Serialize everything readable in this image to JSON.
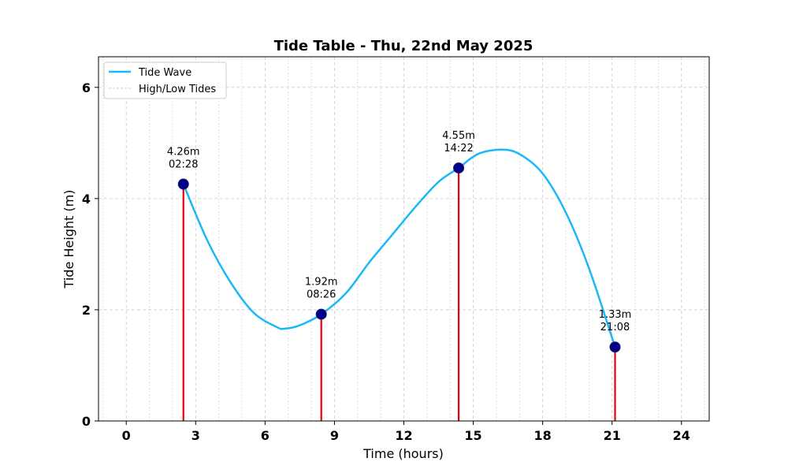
{
  "chart_data": {
    "type": "line",
    "title": "Tide Table - Thu, 22nd May 2025",
    "xlabel": "Time (hours)",
    "ylabel": "Tide Height (m)",
    "xlim": [
      -1.2,
      25.2
    ],
    "ylim": [
      0,
      6.55
    ],
    "xticks": [
      0,
      3,
      6,
      9,
      12,
      15,
      18,
      21,
      24
    ],
    "yticks": [
      0,
      2,
      4,
      6
    ],
    "minor_x_step": 1,
    "grid": true,
    "legend_position": "top-left",
    "series": [
      {
        "name": "Tide Wave",
        "color": "#1ab8f5",
        "x": [
          2.47,
          3.5,
          4.5,
          5.5,
          6.5,
          6.85,
          7.5,
          8.43,
          9.5,
          10.5,
          11.5,
          12.5,
          13.5,
          14.37,
          15.2,
          16.2,
          17.0,
          18.0,
          19.0,
          20.0,
          21.13
        ],
        "y": [
          4.26,
          3.25,
          2.5,
          1.95,
          1.69,
          1.66,
          1.72,
          1.92,
          2.3,
          2.85,
          3.35,
          3.85,
          4.3,
          4.55,
          4.8,
          4.88,
          4.8,
          4.45,
          3.75,
          2.75,
          1.33
        ]
      }
    ],
    "tides_series_name": "High/Low Tides",
    "tides": [
      {
        "time_hours": 2.47,
        "height": 4.26,
        "label_height": "4.26m",
        "label_time": "02:28"
      },
      {
        "time_hours": 8.43,
        "height": 1.92,
        "label_height": "1.92m",
        "label_time": "08:26"
      },
      {
        "time_hours": 14.37,
        "height": 4.55,
        "label_height": "4.55m",
        "label_time": "14:22"
      },
      {
        "time_hours": 21.13,
        "height": 1.33,
        "label_height": "1.33m",
        "label_time": "21:08"
      }
    ],
    "colors": {
      "curve": "#1ab8f5",
      "stem": "#e8000b",
      "marker": "#00008b",
      "grid": "#cccccc"
    }
  }
}
